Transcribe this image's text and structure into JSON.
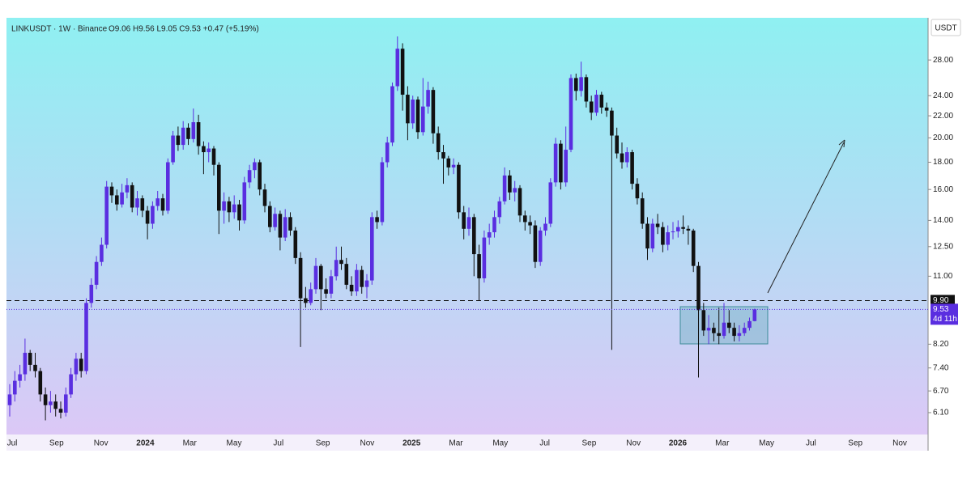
{
  "chart_data": {
    "type": "candlestick",
    "title": "LINKUSDT · 1W · Binance",
    "ohlc_text": "O9.06 H9.56 L9.05 C9.53 +0.47 (+5.19%)",
    "currency": "USDT",
    "countdown": "4d 11h",
    "log_scale": true,
    "up_color": "#5a2ee0",
    "down_color": "#111111",
    "ylim": [
      5.55,
      33.6
    ],
    "yticks": [
      {
        "value": 6.1,
        "label": "6.10"
      },
      {
        "value": 6.7,
        "label": "6.70"
      },
      {
        "value": 7.4,
        "label": "7.40"
      },
      {
        "value": 8.2,
        "label": "8.20"
      },
      {
        "value": 11,
        "label": "11.00"
      },
      {
        "value": 12.5,
        "label": "12.50"
      },
      {
        "value": 14,
        "label": "14.00"
      },
      {
        "value": 16,
        "label": "16.00"
      },
      {
        "value": 18,
        "label": "18.00"
      },
      {
        "value": 20,
        "label": "20.00"
      },
      {
        "value": 22,
        "label": "22.00"
      },
      {
        "value": 24,
        "label": "24.00"
      },
      {
        "value": 28,
        "label": "28.00"
      }
    ],
    "level": {
      "value": 9.9,
      "label": "9.90"
    },
    "x_labels": [
      "Jul",
      "Sep",
      "Nov",
      "2024",
      "Mar",
      "May",
      "Jul",
      "Sep",
      "Nov",
      "2025",
      "Mar",
      "May",
      "Jul",
      "Sep",
      "Nov",
      "2026",
      "Mar",
      "May",
      "Jul",
      "Sep",
      "Nov"
    ],
    "candles": [
      [
        6.3,
        6.9,
        6.0,
        6.6
      ],
      [
        6.6,
        7.3,
        6.4,
        7.0
      ],
      [
        7.0,
        7.5,
        6.8,
        7.2
      ],
      [
        7.2,
        8.4,
        7.0,
        7.9
      ],
      [
        7.9,
        8.0,
        7.3,
        7.5
      ],
      [
        7.5,
        7.9,
        7.1,
        7.3
      ],
      [
        7.3,
        7.4,
        6.4,
        6.6
      ],
      [
        6.6,
        6.8,
        5.9,
        6.3
      ],
      [
        6.3,
        6.7,
        6.1,
        6.4
      ],
      [
        6.4,
        6.6,
        6.0,
        6.2
      ],
      [
        6.2,
        6.4,
        5.95,
        6.1
      ],
      [
        6.1,
        6.8,
        6.0,
        6.6
      ],
      [
        6.6,
        7.4,
        6.5,
        7.2
      ],
      [
        7.2,
        7.9,
        7.0,
        7.7
      ],
      [
        7.7,
        7.9,
        7.1,
        7.3
      ],
      [
        7.3,
        10.0,
        7.2,
        9.8
      ],
      [
        9.8,
        10.9,
        9.6,
        10.6
      ],
      [
        10.6,
        12.0,
        10.4,
        11.7
      ],
      [
        11.7,
        13.0,
        11.5,
        12.6
      ],
      [
        12.6,
        16.6,
        12.4,
        16.2
      ],
      [
        16.2,
        16.5,
        15.1,
        15.6
      ],
      [
        15.6,
        16.0,
        14.6,
        15.0
      ],
      [
        15.0,
        16.4,
        14.8,
        15.8
      ],
      [
        15.8,
        16.8,
        15.4,
        16.3
      ],
      [
        16.3,
        16.5,
        14.5,
        14.8
      ],
      [
        14.8,
        15.9,
        14.3,
        15.4
      ],
      [
        15.4,
        15.6,
        14.2,
        14.6
      ],
      [
        14.6,
        14.9,
        12.9,
        13.8
      ],
      [
        13.8,
        15.2,
        13.5,
        14.9
      ],
      [
        14.9,
        15.9,
        14.6,
        15.4
      ],
      [
        15.4,
        15.7,
        14.3,
        14.6
      ],
      [
        14.6,
        18.3,
        14.4,
        18.0
      ],
      [
        18.0,
        20.6,
        17.8,
        20.2
      ],
      [
        20.2,
        21.0,
        18.9,
        19.4
      ],
      [
        19.4,
        21.5,
        19.0,
        20.9
      ],
      [
        20.9,
        21.3,
        19.4,
        19.9
      ],
      [
        19.9,
        22.7,
        19.6,
        21.4
      ],
      [
        21.4,
        22.1,
        18.6,
        19.3
      ],
      [
        19.3,
        19.7,
        17.1,
        18.8
      ],
      [
        18.8,
        19.6,
        18.0,
        19.1
      ],
      [
        19.1,
        19.3,
        17.0,
        17.8
      ],
      [
        17.8,
        18.0,
        13.2,
        14.6
      ],
      [
        14.6,
        15.8,
        13.8,
        15.2
      ],
      [
        15.2,
        15.5,
        13.9,
        14.5
      ],
      [
        14.5,
        15.6,
        14.1,
        15.0
      ],
      [
        15.0,
        15.3,
        13.4,
        14.0
      ],
      [
        14.0,
        16.9,
        13.8,
        16.5
      ],
      [
        16.5,
        17.8,
        16.1,
        17.4
      ],
      [
        17.4,
        18.3,
        16.8,
        18.0
      ],
      [
        18.0,
        18.2,
        15.6,
        16.0
      ],
      [
        16.0,
        16.4,
        14.5,
        14.9
      ],
      [
        14.9,
        15.2,
        13.3,
        13.6
      ],
      [
        13.6,
        14.8,
        13.4,
        14.4
      ],
      [
        14.4,
        14.6,
        12.3,
        13.0
      ],
      [
        13.0,
        14.7,
        12.8,
        14.2
      ],
      [
        14.2,
        14.5,
        13.1,
        13.4
      ],
      [
        13.4,
        13.6,
        11.6,
        11.9
      ],
      [
        11.9,
        12.2,
        8.1,
        10.0
      ],
      [
        10.0,
        10.5,
        9.6,
        9.8
      ],
      [
        9.8,
        10.7,
        9.7,
        10.4
      ],
      [
        10.4,
        11.9,
        10.2,
        11.5
      ],
      [
        11.5,
        11.6,
        9.5,
        10.4
      ],
      [
        10.4,
        10.9,
        10.0,
        10.2
      ],
      [
        10.2,
        11.3,
        10.0,
        11.0
      ],
      [
        11.0,
        12.5,
        10.8,
        11.8
      ],
      [
        11.8,
        12.5,
        11.3,
        11.6
      ],
      [
        11.6,
        11.9,
        10.4,
        10.6
      ],
      [
        10.6,
        11.0,
        10.1,
        10.3
      ],
      [
        10.3,
        11.6,
        10.1,
        11.3
      ],
      [
        11.3,
        11.5,
        10.2,
        10.5
      ],
      [
        10.5,
        11.1,
        10.0,
        10.8
      ],
      [
        10.8,
        14.5,
        10.6,
        14.2
      ],
      [
        14.2,
        14.6,
        13.5,
        13.9
      ],
      [
        13.9,
        18.4,
        13.7,
        18.0
      ],
      [
        18.0,
        20.1,
        17.6,
        19.6
      ],
      [
        19.6,
        25.4,
        19.3,
        25.0
      ],
      [
        25.0,
        31.0,
        24.5,
        29.4
      ],
      [
        29.4,
        30.1,
        22.5,
        24.1
      ],
      [
        24.1,
        25.0,
        19.8,
        21.3
      ],
      [
        21.3,
        24.0,
        20.8,
        23.6
      ],
      [
        23.6,
        23.9,
        19.9,
        20.5
      ],
      [
        20.5,
        25.9,
        20.2,
        22.9
      ],
      [
        22.9,
        25.5,
        22.2,
        24.6
      ],
      [
        24.6,
        24.9,
        19.5,
        20.4
      ],
      [
        20.4,
        21.0,
        18.2,
        18.8
      ],
      [
        18.8,
        19.4,
        16.4,
        18.3
      ],
      [
        18.3,
        18.5,
        17.0,
        17.6
      ],
      [
        17.6,
        18.3,
        17.1,
        17.8
      ],
      [
        17.8,
        18.0,
        14.1,
        14.5
      ],
      [
        14.5,
        14.9,
        12.9,
        13.5
      ],
      [
        13.5,
        14.8,
        13.1,
        14.2
      ],
      [
        14.2,
        14.4,
        11.0,
        12.1
      ],
      [
        12.1,
        12.6,
        9.9,
        10.9
      ],
      [
        10.9,
        13.4,
        10.7,
        13.0
      ],
      [
        13.0,
        13.8,
        12.6,
        13.3
      ],
      [
        13.3,
        14.6,
        13.0,
        14.2
      ],
      [
        14.2,
        15.5,
        13.8,
        15.2
      ],
      [
        15.2,
        17.6,
        15.0,
        17.0
      ],
      [
        17.0,
        17.4,
        15.3,
        15.8
      ],
      [
        15.8,
        16.6,
        15.2,
        16.1
      ],
      [
        16.1,
        16.3,
        13.9,
        14.3
      ],
      [
        14.3,
        14.6,
        13.4,
        13.9
      ],
      [
        13.9,
        14.3,
        13.2,
        13.7
      ],
      [
        13.7,
        14.0,
        11.4,
        11.7
      ],
      [
        11.7,
        13.6,
        11.5,
        13.4
      ],
      [
        13.4,
        14.2,
        13.1,
        13.8
      ],
      [
        13.8,
        16.8,
        13.6,
        16.5
      ],
      [
        16.5,
        20.0,
        16.2,
        19.5
      ],
      [
        19.5,
        19.8,
        16.0,
        16.5
      ],
      [
        16.5,
        21.0,
        16.2,
        19.0
      ],
      [
        19.0,
        26.3,
        18.8,
        25.9
      ],
      [
        25.9,
        26.4,
        23.5,
        24.5
      ],
      [
        24.5,
        27.8,
        23.9,
        26.0
      ],
      [
        26.0,
        26.3,
        22.8,
        23.4
      ],
      [
        23.4,
        24.0,
        21.6,
        22.3
      ],
      [
        22.3,
        24.6,
        22.0,
        24.1
      ],
      [
        24.1,
        24.4,
        22.2,
        22.8
      ],
      [
        22.8,
        23.3,
        21.9,
        22.5
      ],
      [
        22.5,
        22.8,
        8.0,
        20.2
      ],
      [
        20.2,
        20.9,
        18.3,
        18.7
      ],
      [
        18.7,
        19.6,
        17.5,
        18.0
      ],
      [
        18.0,
        19.2,
        17.6,
        18.8
      ],
      [
        18.8,
        19.0,
        16.0,
        16.4
      ],
      [
        16.4,
        16.8,
        15.0,
        15.4
      ],
      [
        15.4,
        15.8,
        13.5,
        13.8
      ],
      [
        13.8,
        14.2,
        11.8,
        12.4
      ],
      [
        12.4,
        14.1,
        12.2,
        13.8
      ],
      [
        13.8,
        14.4,
        13.2,
        13.6
      ],
      [
        13.6,
        13.9,
        12.2,
        12.6
      ],
      [
        12.6,
        13.7,
        12.3,
        13.3
      ],
      [
        13.3,
        13.9,
        12.9,
        13.35
      ],
      [
        13.35,
        14.0,
        13.0,
        13.6
      ],
      [
        13.6,
        14.3,
        13.2,
        13.5
      ],
      [
        13.5,
        13.7,
        12.6,
        13.4
      ],
      [
        13.4,
        13.5,
        11.2,
        11.5
      ],
      [
        11.5,
        11.7,
        7.1,
        9.5
      ],
      [
        9.5,
        9.8,
        8.5,
        8.7
      ],
      [
        8.7,
        9.3,
        8.2,
        8.8
      ],
      [
        8.8,
        9.0,
        8.3,
        8.6
      ],
      [
        8.6,
        9.6,
        8.2,
        8.5
      ],
      [
        8.5,
        9.8,
        8.4,
        9.0
      ],
      [
        9.0,
        9.5,
        8.6,
        8.8
      ],
      [
        8.8,
        9.0,
        8.3,
        8.5
      ],
      [
        8.5,
        8.9,
        8.3,
        8.6
      ],
      [
        8.6,
        9.0,
        8.5,
        8.8
      ],
      [
        8.8,
        9.2,
        8.7,
        9.06
      ],
      [
        9.06,
        9.56,
        9.05,
        9.53
      ]
    ]
  }
}
